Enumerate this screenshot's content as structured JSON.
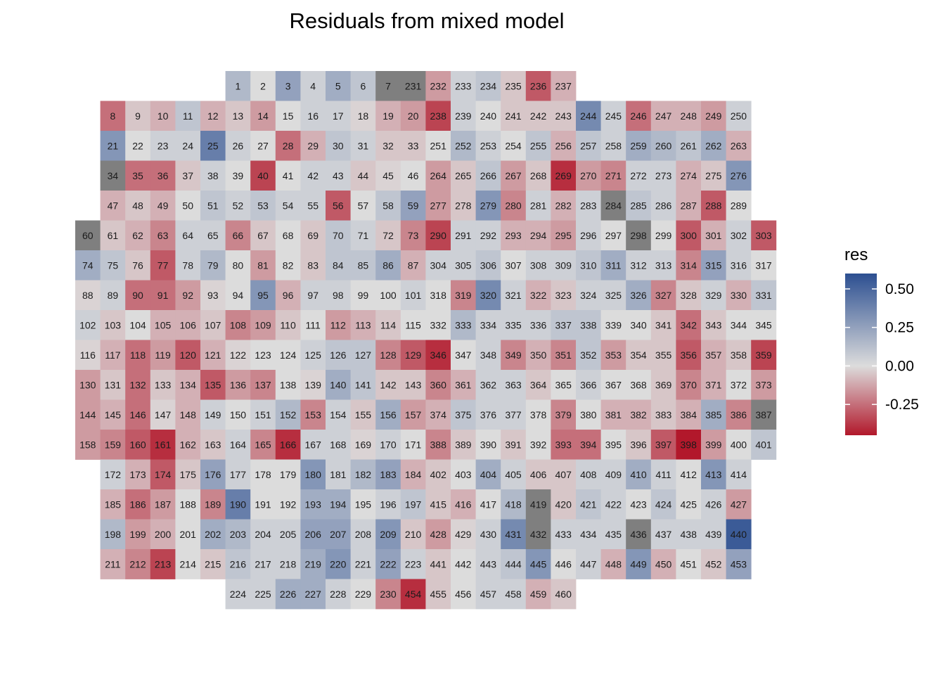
{
  "chart_data": {
    "type": "heatmap",
    "title": "Residuals from mixed model",
    "legend": {
      "title": "res",
      "placement": "right",
      "range": [
        -0.45,
        0.6
      ],
      "ticks": [
        -0.25,
        0.0,
        0.25,
        0.5
      ],
      "tick_labels": [
        "-0.25",
        "0.00",
        "0.25",
        "0.50"
      ],
      "colors": {
        "low": "#b2182b",
        "mid": "#dcdcdc",
        "high": "#2c4f91",
        "na": "#7f7f7f"
      }
    },
    "rows": [
      {
        "start_col": 7,
        "ids": [
          1,
          2,
          3,
          4,
          5,
          6,
          7,
          231,
          232,
          233,
          234,
          235,
          236,
          237
        ],
        "res": [
          0.15,
          0.0,
          0.25,
          0.05,
          0.2,
          0.1,
          null,
          null,
          -0.15,
          0.05,
          0.1,
          -0.05,
          -0.3,
          -0.1
        ]
      },
      {
        "start_col": 2,
        "ids": [
          8,
          9,
          10,
          11,
          12,
          13,
          14,
          15,
          16,
          17,
          18,
          19,
          20,
          238,
          239,
          240,
          241,
          242,
          243,
          244,
          245,
          246,
          247,
          248,
          249,
          250
        ],
        "res": [
          -0.25,
          -0.05,
          -0.1,
          0.1,
          -0.1,
          -0.05,
          -0.15,
          0.0,
          0.05,
          0.05,
          -0.02,
          -0.1,
          -0.15,
          -0.35,
          0.05,
          0.0,
          -0.05,
          -0.05,
          -0.05,
          0.35,
          0.05,
          -0.25,
          -0.1,
          -0.1,
          -0.15,
          0.05
        ]
      },
      {
        "start_col": 2,
        "ids": [
          21,
          22,
          23,
          24,
          25,
          26,
          27,
          28,
          29,
          30,
          31,
          32,
          33,
          251,
          252,
          253,
          254,
          255,
          256,
          257,
          258,
          259,
          260,
          261,
          262,
          263
        ],
        "res": [
          0.3,
          0.0,
          0.05,
          0.05,
          0.4,
          0.05,
          0.0,
          -0.25,
          -0.1,
          0.1,
          0.05,
          -0.05,
          -0.05,
          0.0,
          0.15,
          0.05,
          0.0,
          0.1,
          -0.1,
          0.1,
          0.05,
          0.2,
          0.15,
          0.1,
          0.2,
          -0.1
        ]
      },
      {
        "start_col": 2,
        "ids": [
          34,
          35,
          36,
          37,
          38,
          39,
          40,
          41,
          42,
          43,
          44,
          45,
          46,
          264,
          265,
          266,
          267,
          268,
          269,
          270,
          271,
          272,
          273,
          274,
          275,
          276
        ],
        "res": [
          null,
          -0.25,
          -0.25,
          -0.05,
          0.05,
          0.0,
          -0.35,
          0.0,
          0.05,
          0.05,
          -0.05,
          -0.02,
          0.0,
          -0.15,
          -0.05,
          0.1,
          -0.15,
          -0.05,
          -0.4,
          -0.15,
          -0.2,
          0.05,
          0.05,
          -0.1,
          -0.05,
          0.3
        ]
      },
      {
        "start_col": 2,
        "ids": [
          47,
          48,
          49,
          50,
          51,
          52,
          53,
          54,
          55,
          56,
          57,
          58,
          59,
          277,
          278,
          279,
          280,
          281,
          282,
          283,
          284,
          285,
          286,
          287,
          288,
          289
        ],
        "res": [
          -0.1,
          -0.05,
          -0.1,
          0.0,
          0.1,
          0.05,
          0.1,
          0.05,
          0.05,
          -0.3,
          0.0,
          0.1,
          0.25,
          -0.15,
          -0.05,
          0.3,
          -0.2,
          0.05,
          -0.1,
          0.05,
          null,
          0.1,
          0.05,
          -0.1,
          -0.3,
          0.0
        ]
      },
      {
        "start_col": 1,
        "ids": [
          60,
          61,
          62,
          63,
          64,
          65,
          66,
          67,
          68,
          69,
          70,
          71,
          72,
          73,
          290,
          291,
          292,
          293,
          294,
          295,
          296,
          297,
          298,
          299,
          300,
          301,
          302,
          303
        ],
        "res": [
          null,
          -0.05,
          -0.1,
          -0.2,
          0.05,
          0.05,
          -0.2,
          -0.05,
          0.0,
          -0.05,
          0.1,
          0.05,
          -0.05,
          -0.2,
          -0.35,
          0.05,
          0.05,
          -0.1,
          -0.1,
          -0.15,
          0.05,
          0.0,
          null,
          0.0,
          -0.3,
          -0.1,
          0.05,
          -0.3
        ]
      },
      {
        "start_col": 1,
        "ids": [
          74,
          75,
          76,
          77,
          78,
          79,
          80,
          81,
          82,
          83,
          84,
          85,
          86,
          87,
          304,
          305,
          306,
          307,
          308,
          309,
          310,
          311,
          312,
          313,
          314,
          315,
          316,
          317
        ],
        "res": [
          0.2,
          0.1,
          -0.05,
          -0.3,
          0.05,
          0.15,
          0.0,
          -0.15,
          0.0,
          -0.05,
          0.1,
          0.1,
          0.2,
          -0.1,
          0.05,
          0.05,
          0.1,
          0.0,
          0.05,
          0.05,
          0.1,
          0.2,
          0.05,
          0.05,
          -0.2,
          0.25,
          0.05,
          0.0
        ]
      },
      {
        "start_col": 1,
        "ids": [
          88,
          89,
          90,
          91,
          92,
          93,
          94,
          95,
          96,
          97,
          98,
          99,
          100,
          101,
          318,
          319,
          320,
          321,
          322,
          323,
          324,
          325,
          326,
          327,
          328,
          329,
          330,
          331
        ],
        "res": [
          -0.02,
          0.05,
          -0.25,
          -0.25,
          -0.15,
          -0.02,
          0.0,
          0.3,
          -0.1,
          0.05,
          0.05,
          0.0,
          0.0,
          0.05,
          0.0,
          -0.2,
          0.35,
          0.05,
          -0.1,
          -0.05,
          0.05,
          0.05,
          0.2,
          -0.2,
          -0.05,
          0.05,
          -0.1,
          0.1
        ]
      },
      {
        "start_col": 1,
        "ids": [
          102,
          103,
          104,
          105,
          106,
          107,
          108,
          109,
          110,
          111,
          112,
          113,
          114,
          115,
          332,
          333,
          334,
          335,
          336,
          337,
          338,
          339,
          340,
          341,
          342,
          343,
          344,
          345
        ],
        "res": [
          0.05,
          -0.05,
          0.0,
          -0.1,
          -0.1,
          -0.05,
          -0.2,
          -0.15,
          -0.05,
          0.0,
          -0.15,
          -0.1,
          -0.05,
          0.0,
          0.0,
          0.15,
          0.05,
          0.05,
          0.05,
          0.1,
          0.1,
          0.0,
          0.0,
          -0.05,
          -0.25,
          -0.05,
          0.0,
          0.0
        ]
      },
      {
        "start_col": 1,
        "ids": [
          116,
          117,
          118,
          119,
          120,
          121,
          122,
          123,
          124,
          125,
          126,
          127,
          128,
          129,
          346,
          347,
          348,
          349,
          350,
          351,
          352,
          353,
          354,
          355,
          356,
          357,
          358,
          359
        ],
        "res": [
          -0.02,
          -0.1,
          -0.25,
          -0.15,
          -0.3,
          -0.1,
          -0.02,
          0.0,
          0.0,
          0.05,
          0.1,
          0.1,
          -0.2,
          -0.3,
          -0.4,
          0.0,
          0.05,
          -0.2,
          -0.1,
          -0.2,
          0.1,
          -0.15,
          -0.05,
          -0.05,
          -0.3,
          -0.1,
          -0.05,
          -0.35
        ]
      },
      {
        "start_col": 1,
        "ids": [
          130,
          131,
          132,
          133,
          134,
          135,
          136,
          137,
          138,
          139,
          140,
          141,
          142,
          143,
          360,
          361,
          362,
          363,
          364,
          365,
          366,
          367,
          368,
          369,
          370,
          371,
          372,
          373
        ],
        "res": [
          -0.15,
          -0.05,
          -0.25,
          -0.05,
          -0.1,
          -0.3,
          -0.15,
          -0.2,
          0.0,
          -0.02,
          0.2,
          0.1,
          -0.05,
          -0.05,
          -0.2,
          -0.1,
          0.05,
          0.05,
          -0.05,
          0.0,
          0.05,
          0.0,
          0.0,
          -0.05,
          -0.2,
          -0.1,
          0.0,
          -0.15
        ]
      },
      {
        "start_col": 1,
        "ids": [
          144,
          145,
          146,
          147,
          148,
          149,
          150,
          151,
          152,
          153,
          154,
          155,
          156,
          157,
          374,
          375,
          376,
          377,
          378,
          379,
          380,
          381,
          382,
          383,
          384,
          385,
          386,
          387
        ],
        "res": [
          -0.15,
          -0.1,
          -0.25,
          -0.02,
          -0.1,
          0.05,
          0.0,
          0.05,
          0.15,
          -0.2,
          0.05,
          -0.05,
          0.2,
          -0.15,
          -0.1,
          0.1,
          0.05,
          0.05,
          0.0,
          -0.2,
          0.0,
          -0.1,
          -0.1,
          -0.05,
          -0.1,
          0.2,
          -0.2,
          null
        ]
      },
      {
        "start_col": 1,
        "ids": [
          158,
          159,
          160,
          161,
          162,
          163,
          164,
          165,
          166,
          167,
          168,
          169,
          170,
          171,
          388,
          389,
          390,
          391,
          392,
          393,
          394,
          395,
          396,
          397,
          398,
          399,
          400,
          401
        ],
        "res": [
          -0.15,
          -0.2,
          -0.3,
          -0.4,
          -0.1,
          -0.05,
          0.05,
          -0.2,
          -0.4,
          0.05,
          0.05,
          -0.02,
          0.05,
          0.0,
          -0.2,
          -0.05,
          0.0,
          -0.05,
          0.0,
          -0.25,
          -0.25,
          0.0,
          -0.05,
          -0.3,
          -0.45,
          -0.15,
          0.0,
          0.1
        ]
      },
      {
        "start_col": 2,
        "ids": [
          172,
          173,
          174,
          175,
          176,
          177,
          178,
          179,
          180,
          181,
          182,
          183,
          184,
          402,
          403,
          404,
          405,
          406,
          407,
          408,
          409,
          410,
          411,
          412,
          413,
          414
        ],
        "res": [
          0.05,
          -0.1,
          -0.3,
          -0.05,
          0.25,
          0.05,
          0.0,
          0.0,
          0.3,
          0.05,
          0.15,
          0.25,
          -0.1,
          -0.05,
          0.0,
          0.2,
          0.05,
          -0.05,
          -0.05,
          0.05,
          0.05,
          0.2,
          0.05,
          0.0,
          0.3,
          0.05
        ]
      },
      {
        "start_col": 2,
        "ids": [
          185,
          186,
          187,
          188,
          189,
          190,
          191,
          192,
          193,
          194,
          195,
          196,
          197,
          415,
          416,
          417,
          418,
          419,
          420,
          421,
          422,
          423,
          424,
          425,
          426,
          427
        ],
        "res": [
          -0.1,
          -0.25,
          -0.15,
          0.0,
          -0.2,
          0.4,
          0.0,
          0.0,
          0.2,
          0.2,
          0.0,
          0.05,
          0.1,
          -0.05,
          -0.1,
          0.0,
          0.15,
          null,
          -0.05,
          0.1,
          0.05,
          0.0,
          0.1,
          0.0,
          0.05,
          -0.15
        ]
      },
      {
        "start_col": 2,
        "ids": [
          198,
          199,
          200,
          201,
          202,
          203,
          204,
          205,
          206,
          207,
          208,
          209,
          210,
          428,
          429,
          430,
          431,
          432,
          433,
          434,
          435,
          436,
          437,
          438,
          439,
          440
        ],
        "res": [
          0.15,
          -0.15,
          -0.1,
          0.0,
          0.2,
          0.15,
          0.05,
          0.05,
          0.25,
          0.25,
          0.05,
          0.3,
          -0.05,
          -0.15,
          -0.02,
          0.05,
          0.35,
          null,
          0.05,
          0.05,
          0.05,
          null,
          0.05,
          0.05,
          0.05,
          0.55
        ]
      },
      {
        "start_col": 2,
        "ids": [
          211,
          212,
          213,
          214,
          215,
          216,
          217,
          218,
          219,
          220,
          221,
          222,
          223,
          441,
          442,
          443,
          444,
          445,
          446,
          447,
          448,
          449,
          450,
          451,
          452,
          453
        ],
        "res": [
          -0.1,
          -0.2,
          -0.35,
          0.0,
          -0.05,
          0.1,
          0.05,
          0.05,
          0.2,
          0.3,
          0.05,
          0.25,
          0.05,
          -0.05,
          0.0,
          0.05,
          0.1,
          0.3,
          0.0,
          0.05,
          -0.1,
          0.3,
          -0.1,
          0.0,
          -0.05,
          0.25
        ]
      },
      {
        "start_col": 7,
        "ids": [
          224,
          225,
          226,
          227,
          228,
          229,
          230,
          454,
          455,
          456,
          457,
          458,
          459,
          460
        ],
        "res": [
          0.05,
          0.05,
          0.2,
          0.2,
          0.05,
          0.0,
          -0.2,
          -0.4,
          -0.05,
          0.0,
          0.05,
          0.05,
          -0.1,
          -0.05
        ]
      }
    ]
  }
}
